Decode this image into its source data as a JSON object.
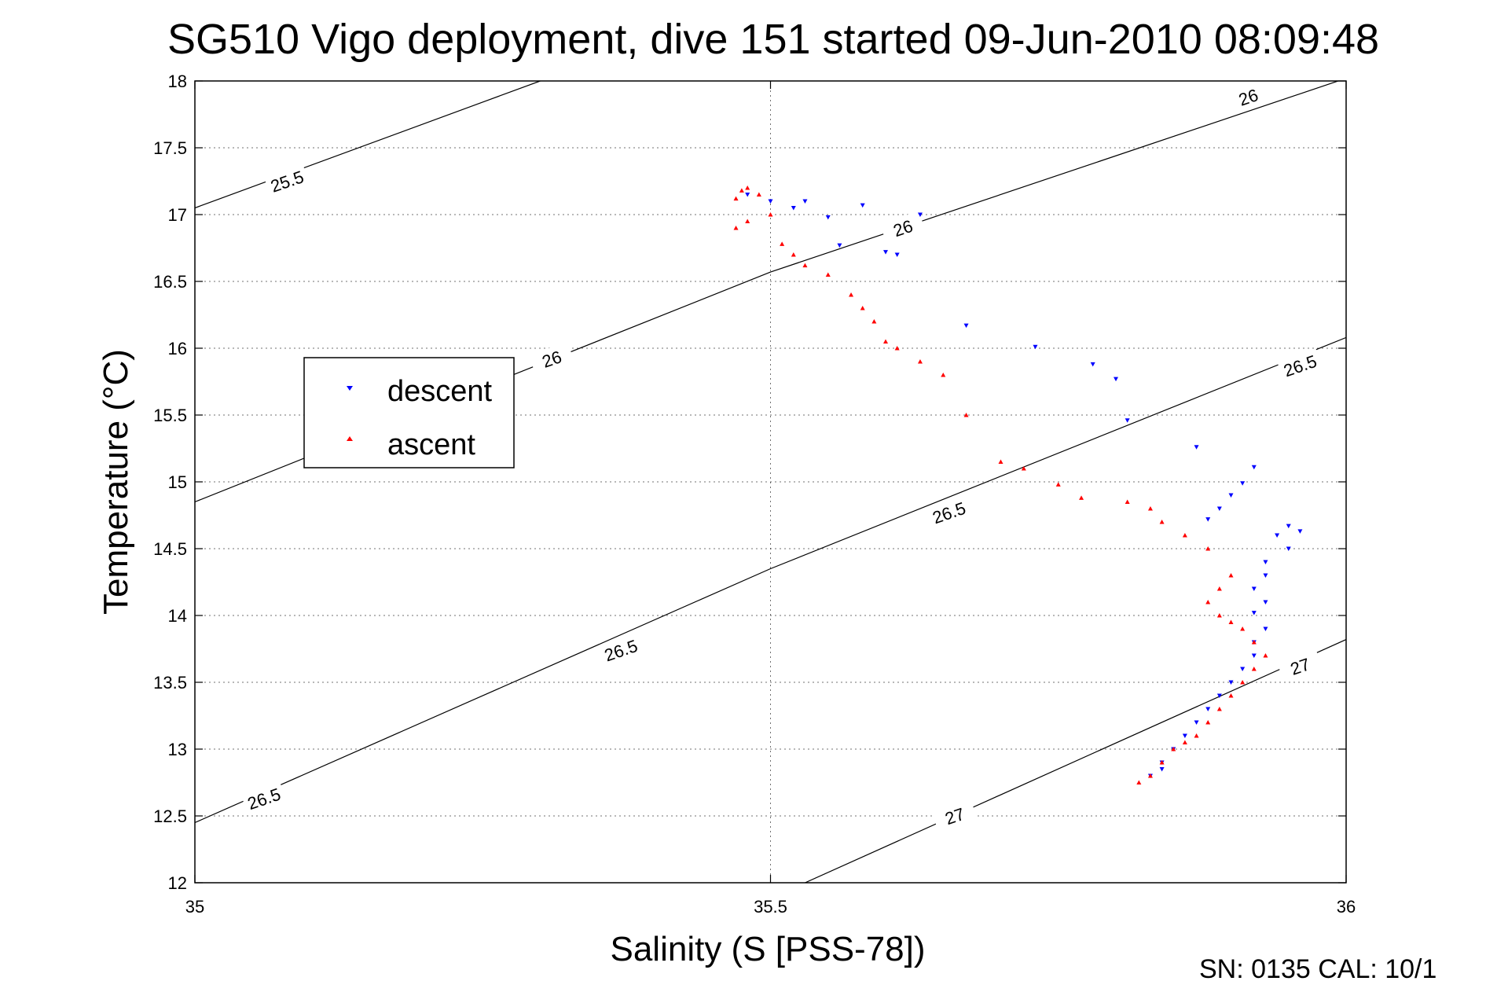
{
  "chart_data": {
    "type": "scatter",
    "title": "SG510 Vigo deployment, dive 151 started 09-Jun-2010 08:09:48",
    "xlabel": "Salinity (S [PSS-78])",
    "ylabel": "Temperature (°C)",
    "xlim": [
      35,
      36
    ],
    "ylim": [
      12,
      18
    ],
    "x_ticks": [
      35,
      35.5,
      36
    ],
    "y_ticks": [
      12,
      12.5,
      13,
      13.5,
      14,
      14.5,
      15,
      15.5,
      16,
      16.5,
      17,
      17.5,
      18
    ],
    "grid": true,
    "legend": {
      "position": "left",
      "entries": [
        "descent",
        "ascent"
      ]
    },
    "series": [
      {
        "name": "descent",
        "color": "#0000ff",
        "marker": "triangle-down",
        "x": [
          35.48,
          35.5,
          35.52,
          35.53,
          35.55,
          35.56,
          35.58,
          35.6,
          35.61,
          35.63,
          35.67,
          35.73,
          35.78,
          35.8,
          35.81,
          35.87,
          35.92,
          35.91,
          35.9,
          35.89,
          35.88,
          35.95,
          35.94,
          35.96,
          35.95,
          35.93,
          35.93,
          35.92,
          35.93,
          35.92,
          35.93,
          35.92,
          35.92,
          35.91,
          35.9,
          35.89,
          35.88,
          35.87,
          35.86,
          35.85,
          35.84,
          35.84,
          35.83
        ],
        "y": [
          17.15,
          17.1,
          17.05,
          17.1,
          16.98,
          16.77,
          17.07,
          16.72,
          16.7,
          17.0,
          16.17,
          16.01,
          15.88,
          15.77,
          15.46,
          15.26,
          15.11,
          14.99,
          14.9,
          14.8,
          14.72,
          14.67,
          14.6,
          14.63,
          14.5,
          14.4,
          14.3,
          14.2,
          14.1,
          14.02,
          13.9,
          13.8,
          13.7,
          13.6,
          13.5,
          13.4,
          13.3,
          13.2,
          13.1,
          13.0,
          12.9,
          12.85,
          12.8
        ]
      },
      {
        "name": "ascent",
        "color": "#ff0000",
        "marker": "triangle-up",
        "x": [
          35.47,
          35.475,
          35.48,
          35.49,
          35.47,
          35.48,
          35.5,
          35.51,
          35.52,
          35.53,
          35.55,
          35.57,
          35.58,
          35.59,
          35.6,
          35.61,
          35.63,
          35.65,
          35.67,
          35.7,
          35.72,
          35.75,
          35.77,
          35.81,
          35.83,
          35.84,
          35.86,
          35.88,
          35.9,
          35.89,
          35.88,
          35.89,
          35.9,
          35.91,
          35.92,
          35.93,
          35.92,
          35.91,
          35.9,
          35.89,
          35.88,
          35.87,
          35.86,
          35.85,
          35.84,
          35.83,
          35.82
        ],
        "y": [
          17.12,
          17.18,
          17.2,
          17.15,
          16.9,
          16.95,
          17.0,
          16.78,
          16.7,
          16.62,
          16.55,
          16.4,
          16.3,
          16.2,
          16.05,
          16.0,
          15.9,
          15.8,
          15.5,
          15.15,
          15.1,
          14.98,
          14.88,
          14.85,
          14.8,
          14.7,
          14.6,
          14.5,
          14.3,
          14.2,
          14.1,
          14.0,
          13.95,
          13.9,
          13.8,
          13.7,
          13.6,
          13.5,
          13.4,
          13.3,
          13.2,
          13.1,
          13.05,
          13.0,
          12.9,
          12.8,
          12.75
        ]
      }
    ],
    "contours": [
      {
        "level": "25.5",
        "x": [
          35,
          35.3
        ],
        "y": [
          17.05,
          18.0
        ]
      },
      {
        "level": "26",
        "x": [
          35,
          35.5,
          36
        ],
        "y": [
          14.85,
          16.57,
          18.02
        ]
      },
      {
        "level": "26.5",
        "x": [
          35,
          35.5,
          36
        ],
        "y": [
          12.45,
          14.35,
          16.08
        ]
      },
      {
        "level": "27",
        "x": [
          35.53,
          36
        ],
        "y": [
          12.0,
          13.82
        ]
      }
    ],
    "contour_labels": [
      {
        "text": "25.5",
        "x": 35.08,
        "y": 17.25,
        "angle": -19
      },
      {
        "text": "26",
        "x": 35.31,
        "y": 15.92,
        "angle": -19
      },
      {
        "text": "26",
        "x": 35.615,
        "y": 16.9,
        "angle": -19
      },
      {
        "text": "26",
        "x": 35.915,
        "y": 17.88,
        "angle": -19
      },
      {
        "text": "26.5",
        "x": 35.06,
        "y": 12.63,
        "angle": -19
      },
      {
        "text": "26.5",
        "x": 35.37,
        "y": 13.74,
        "angle": -19
      },
      {
        "text": "26.5",
        "x": 35.655,
        "y": 14.77,
        "angle": -19
      },
      {
        "text": "26.5",
        "x": 35.96,
        "y": 15.87,
        "angle": -19
      },
      {
        "text": "27",
        "x": 35.66,
        "y": 12.5,
        "angle": -19
      },
      {
        "text": "27",
        "x": 35.96,
        "y": 13.62,
        "angle": -19
      }
    ]
  },
  "footer": {
    "sn_text": "SN: 0135  CAL: 10/1"
  }
}
